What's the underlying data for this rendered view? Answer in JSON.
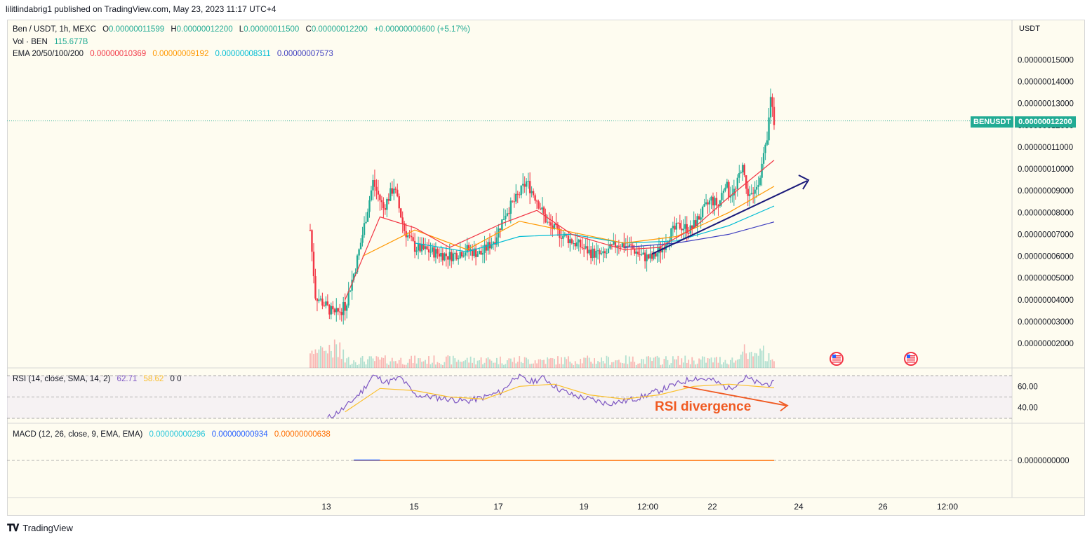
{
  "header": {
    "publisher_line": "lilitlindabrig1 published on TradingView.com, May 23, 2023 11:17 UTC+4"
  },
  "footer": {
    "brand": "TradingView"
  },
  "legend": {
    "symbol_line": "Ben / USDT, 1h, MEXC",
    "ohlc": {
      "o_label": "O",
      "o": "0.00000011599",
      "h_label": "H",
      "h": "0.00000012200",
      "l_label": "L",
      "l": "0.00000011500",
      "c_label": "C",
      "c": "0.00000012200",
      "change": "+0.00000000600 (+5.17%)"
    },
    "vol_label": "Vol · BEN",
    "vol_value": "115.677B",
    "ema_label": "EMA 20/50/100/200",
    "ema_values": [
      "0.00000010369",
      "0.00000009192",
      "0.00000008311",
      "0.00000007573"
    ],
    "rsi_label": "RSI (14, close, SMA, 14, 2)",
    "rsi_value": "62.71",
    "rsi_sma": "58.62",
    "rsi_extra": "0  0",
    "macd_label": "MACD (12, 26, close, 9, EMA, EMA)",
    "macd_values": [
      "0.00000000296",
      "0.00000000934",
      "0.00000000638"
    ]
  },
  "price_tag": {
    "symbol": "BENUSDT",
    "value": "0.00000012200"
  },
  "annotation": {
    "text": "RSI divergence"
  },
  "colors": {
    "up": "#22ab94",
    "down": "#f23645",
    "ema20": "#f23645",
    "ema50": "#ff9800",
    "ema100": "#00bcd4",
    "ema200": "#3f3fbf",
    "rsi": "#7e57c2",
    "rsi_sma": "#fbc02d",
    "macd": "#2962ff",
    "signal": "#ff6d00",
    "annotation": "#f05a22",
    "trendline": "#1a1a7a"
  },
  "chart_data": {
    "type": "candlestick",
    "unit": "USDT",
    "y_axis_label": "USDT",
    "y_ticks": [
      "0.00000002000",
      "0.00000003000",
      "0.00000004000",
      "0.00000005000",
      "0.00000006000",
      "0.00000007000",
      "0.00000008000",
      "0.00000009000",
      "0.00000010000",
      "0.00000011000",
      "0.00000012000",
      "0.00000013000",
      "0.00000014000",
      "0.00000015000"
    ],
    "y_tick_values": [
      2,
      3,
      4,
      5,
      6,
      7,
      8,
      9,
      10,
      11,
      12,
      13,
      14,
      15
    ],
    "x_ticks": [
      "13",
      "15",
      "17",
      "19",
      "12:00",
      "22",
      "24",
      "26",
      "12:00"
    ],
    "y_range_e8": [
      1.2,
      16.2
    ],
    "price_path_e8": [
      [
        0,
        7.2
      ],
      [
        3,
        4.2
      ],
      [
        8,
        3.8
      ],
      [
        14,
        3.3
      ],
      [
        20,
        3.7
      ],
      [
        26,
        5.5
      ],
      [
        30,
        7.0
      ],
      [
        36,
        9.4
      ],
      [
        42,
        8.2
      ],
      [
        48,
        9.2
      ],
      [
        54,
        7.2
      ],
      [
        60,
        6.4
      ],
      [
        70,
        6.2
      ],
      [
        80,
        6.0
      ],
      [
        90,
        6.3
      ],
      [
        98,
        6.1
      ],
      [
        106,
        6.8
      ],
      [
        112,
        8.0
      ],
      [
        118,
        8.6
      ],
      [
        124,
        9.4
      ],
      [
        130,
        8.6
      ],
      [
        136,
        7.5
      ],
      [
        142,
        7.1
      ],
      [
        150,
        6.7
      ],
      [
        160,
        6.2
      ],
      [
        168,
        6.0
      ],
      [
        176,
        6.6
      ],
      [
        184,
        6.4
      ],
      [
        190,
        6.0
      ],
      [
        196,
        5.9
      ],
      [
        202,
        6.4
      ],
      [
        206,
        7.0
      ],
      [
        212,
        7.4
      ],
      [
        218,
        7.2
      ],
      [
        224,
        7.9
      ],
      [
        230,
        8.6
      ],
      [
        234,
        8.3
      ],
      [
        238,
        9.4
      ],
      [
        240,
        8.9
      ],
      [
        244,
        9.0
      ],
      [
        248,
        10.4
      ],
      [
        250,
        9.0
      ],
      [
        254,
        8.7
      ],
      [
        258,
        9.8
      ],
      [
        262,
        11.2
      ],
      [
        264,
        13.4
      ],
      [
        266,
        12.2
      ]
    ],
    "ema_paths_e8": {
      "ema20": [
        [
          20,
          4.0
        ],
        [
          40,
          7.8
        ],
        [
          60,
          7.3
        ],
        [
          80,
          6.4
        ],
        [
          110,
          7.5
        ],
        [
          130,
          8.1
        ],
        [
          150,
          7.0
        ],
        [
          180,
          6.3
        ],
        [
          200,
          6.4
        ],
        [
          220,
          7.3
        ],
        [
          240,
          8.7
        ],
        [
          266,
          10.4
        ]
      ],
      "ema50": [
        [
          30,
          6.0
        ],
        [
          60,
          7.2
        ],
        [
          90,
          6.3
        ],
        [
          120,
          7.6
        ],
        [
          150,
          7.1
        ],
        [
          180,
          6.6
        ],
        [
          210,
          6.9
        ],
        [
          240,
          8.0
        ],
        [
          266,
          9.2
        ]
      ],
      "ema100": [
        [
          60,
          6.6
        ],
        [
          90,
          6.2
        ],
        [
          120,
          6.9
        ],
        [
          150,
          7.0
        ],
        [
          180,
          6.6
        ],
        [
          210,
          6.7
        ],
        [
          240,
          7.4
        ],
        [
          266,
          8.3
        ]
      ],
      "ema200": [
        [
          180,
          6.4
        ],
        [
          210,
          6.6
        ],
        [
          240,
          7.0
        ],
        [
          266,
          7.57
        ]
      ]
    },
    "rsi_ticks": [
      "60.00",
      "40.00"
    ],
    "rsi_tick_values": [
      60,
      40
    ],
    "rsi_range": [
      28,
      72
    ],
    "rsi_path": [
      [
        10,
        30
      ],
      [
        20,
        40
      ],
      [
        30,
        56
      ],
      [
        36,
        70
      ],
      [
        44,
        64
      ],
      [
        52,
        68
      ],
      [
        60,
        52
      ],
      [
        70,
        50
      ],
      [
        80,
        48
      ],
      [
        90,
        46
      ],
      [
        100,
        50
      ],
      [
        110,
        55
      ],
      [
        118,
        70
      ],
      [
        126,
        64
      ],
      [
        134,
        68
      ],
      [
        142,
        58
      ],
      [
        150,
        52
      ],
      [
        160,
        48
      ],
      [
        170,
        44
      ],
      [
        180,
        46
      ],
      [
        190,
        50
      ],
      [
        200,
        56
      ],
      [
        210,
        62
      ],
      [
        220,
        68
      ],
      [
        230,
        66
      ],
      [
        240,
        58
      ],
      [
        250,
        68
      ],
      [
        258,
        62
      ],
      [
        266,
        62.71
      ]
    ],
    "rsi_sma_path": [
      [
        20,
        36
      ],
      [
        40,
        58
      ],
      [
        60,
        56
      ],
      [
        80,
        50
      ],
      [
        100,
        48
      ],
      [
        120,
        60
      ],
      [
        140,
        62
      ],
      [
        160,
        52
      ],
      [
        180,
        48
      ],
      [
        200,
        52
      ],
      [
        220,
        60
      ],
      [
        240,
        62
      ],
      [
        266,
        58.62
      ]
    ],
    "macd_values": {
      "macd": 2.96e-09,
      "signal": 9.34e-09,
      "histogram": 6.38e-09
    },
    "macd_tick": "0.0000000000"
  }
}
